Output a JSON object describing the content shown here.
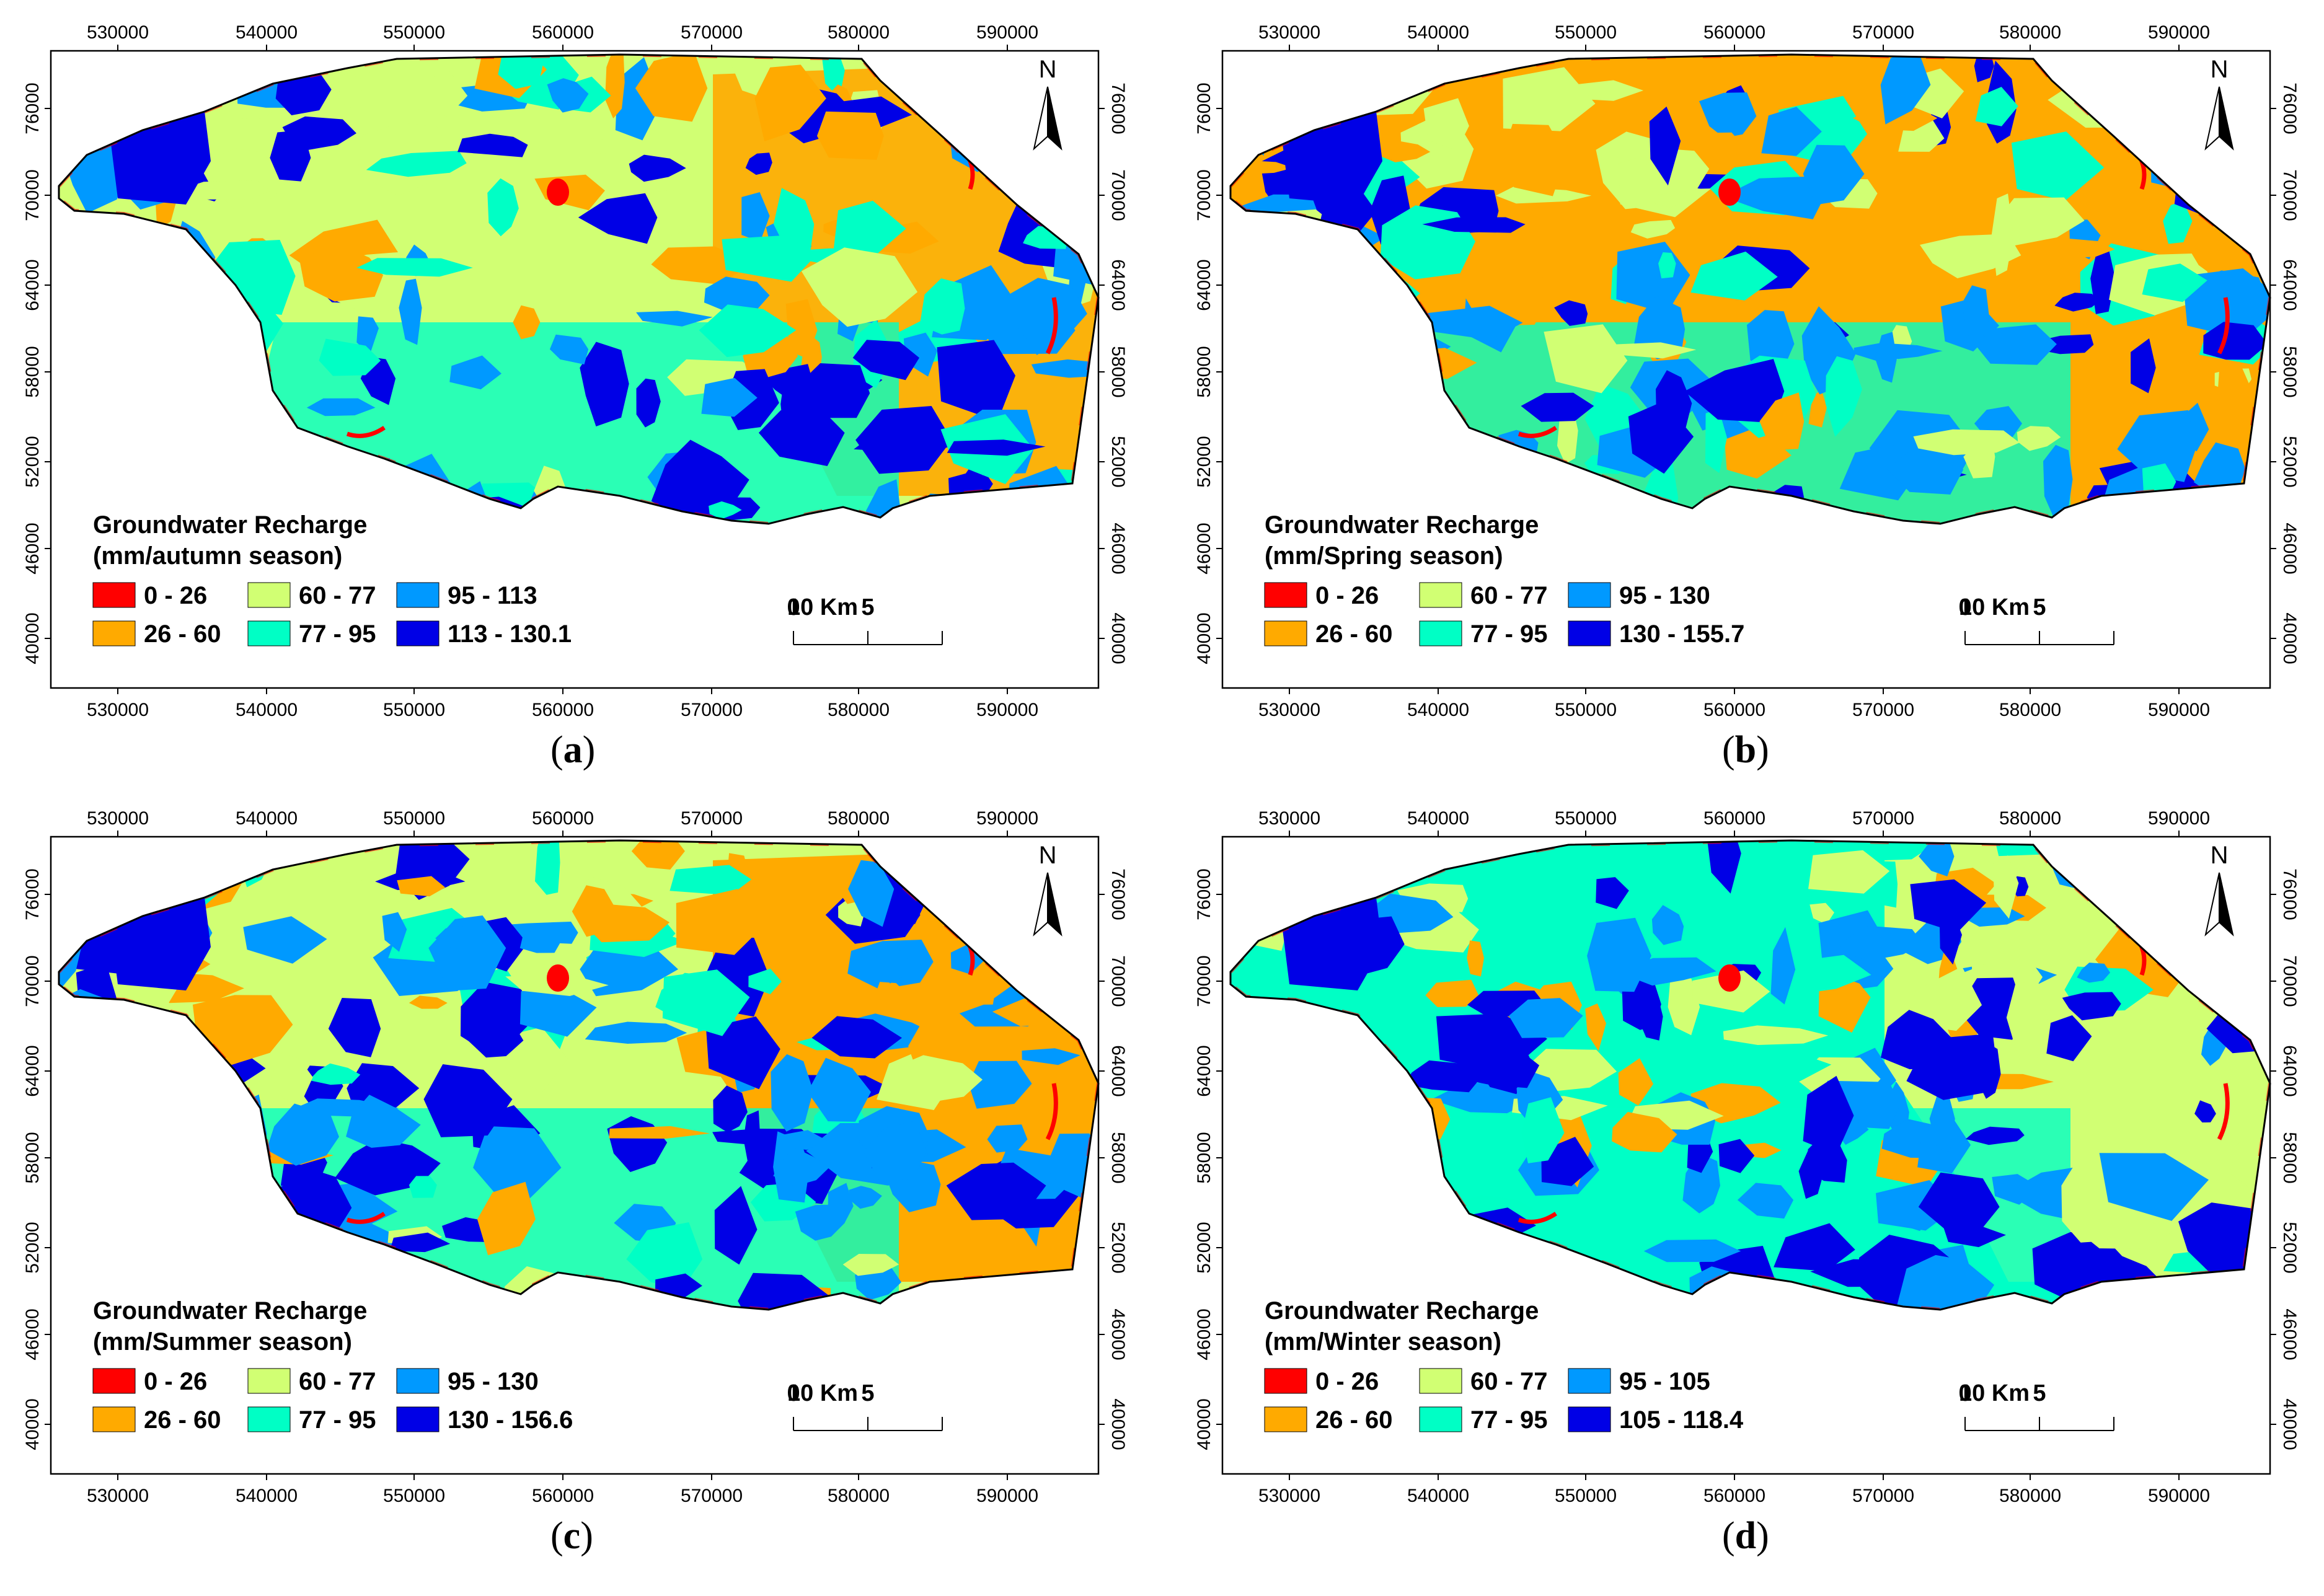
{
  "colors": {
    "class1": "#ff0000",
    "class2": "#ffaa00",
    "class3": "#d1ff73",
    "class4": "#00ffc5",
    "class5": "#0099ff",
    "class6": "#0000e6"
  },
  "axes": {
    "x_ticks": [
      "530000",
      "540000",
      "550000",
      "560000",
      "570000",
      "580000",
      "590000"
    ],
    "y_ticks": [
      "76000",
      "70000",
      "64000",
      "58000",
      "52000",
      "46000",
      "40000"
    ]
  },
  "north_label": "N",
  "scale_bar": {
    "labels": [
      "0",
      "5",
      "10 Km"
    ]
  },
  "panels": [
    {
      "caption_letter": "a",
      "legend_title_1": "Groundwater Recharge",
      "legend_title_2": "(mm/autumn season)",
      "classes": [
        "0 - 26",
        "26 - 60",
        "60 - 77",
        "77 - 95",
        "95 - 113",
        "113 - 130.1"
      ],
      "dominant": "class3"
    },
    {
      "caption_letter": "b",
      "legend_title_1": "Groundwater Recharge",
      "legend_title_2": "(mm/Spring season)",
      "classes": [
        "0 - 26",
        "26 - 60",
        "60 - 77",
        "77 - 95",
        "95 - 130",
        "130 - 155.7"
      ],
      "dominant": "class2"
    },
    {
      "caption_letter": "c",
      "legend_title_1": "Groundwater Recharge",
      "legend_title_2": "(mm/Summer season)",
      "classes": [
        "0 - 26",
        "26 - 60",
        "60 - 77",
        "77 - 95",
        "95 - 130",
        "130 - 156.6"
      ],
      "dominant": "class3"
    },
    {
      "caption_letter": "d",
      "legend_title_1": "Groundwater Recharge",
      "legend_title_2": "(mm/Winter season)",
      "classes": [
        "0 - 26",
        "26 - 60",
        "60 - 77",
        "77 - 95",
        "95 - 105",
        "105 - 118.4"
      ],
      "dominant": "class4"
    }
  ]
}
